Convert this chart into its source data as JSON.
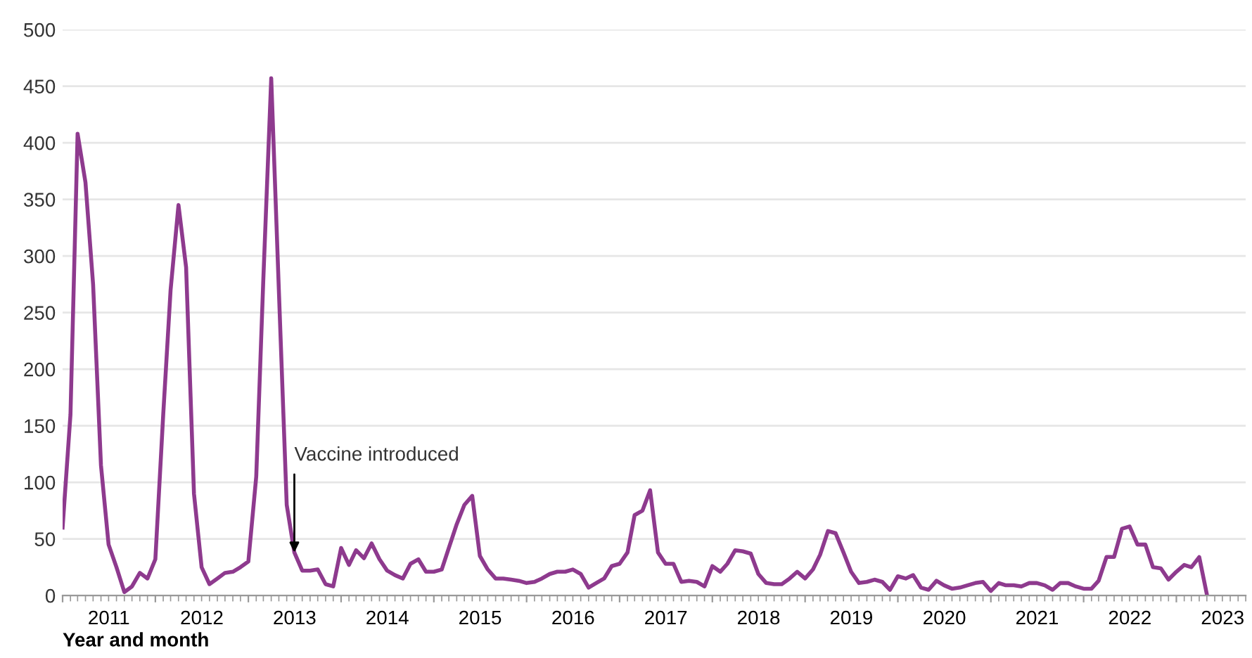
{
  "chart_data": {
    "type": "line",
    "xlabel": "Year and month",
    "x": [
      "2011-01",
      "2011-02",
      "2011-03",
      "2011-04",
      "2011-05",
      "2011-06",
      "2011-07",
      "2011-08",
      "2011-09",
      "2011-10",
      "2011-11",
      "2011-12",
      "2012-01",
      "2012-02",
      "2012-03",
      "2012-04",
      "2012-05",
      "2012-06",
      "2012-07",
      "2012-08",
      "2012-09",
      "2012-10",
      "2012-11",
      "2012-12",
      "2013-01",
      "2013-02",
      "2013-03",
      "2013-04",
      "2013-05",
      "2013-06",
      "2013-07",
      "2013-08",
      "2013-09",
      "2013-10",
      "2013-11",
      "2013-12",
      "2014-01",
      "2014-02",
      "2014-03",
      "2014-04",
      "2014-05",
      "2014-06",
      "2014-07",
      "2014-08",
      "2014-09",
      "2014-10",
      "2014-11",
      "2014-12",
      "2015-01",
      "2015-02",
      "2015-03",
      "2015-04",
      "2015-05",
      "2015-06",
      "2015-07",
      "2015-08",
      "2015-09",
      "2015-10",
      "2015-11",
      "2015-12",
      "2016-01",
      "2016-02",
      "2016-03",
      "2016-04",
      "2016-05",
      "2016-06",
      "2016-07",
      "2016-08",
      "2016-09",
      "2016-10",
      "2016-11",
      "2016-12",
      "2017-01",
      "2017-02",
      "2017-03",
      "2017-04",
      "2017-05",
      "2017-06",
      "2017-07",
      "2017-08",
      "2017-09",
      "2017-10",
      "2017-11",
      "2017-12",
      "2018-01",
      "2018-02",
      "2018-03",
      "2018-04",
      "2018-05",
      "2018-06",
      "2018-07",
      "2018-08",
      "2018-09",
      "2018-10",
      "2018-11",
      "2018-12",
      "2019-01",
      "2019-02",
      "2019-03",
      "2019-04",
      "2019-05",
      "2019-06",
      "2019-07",
      "2019-08",
      "2019-09",
      "2019-10",
      "2019-11",
      "2019-12",
      "2020-01",
      "2020-02",
      "2020-03",
      "2020-04",
      "2020-05",
      "2020-06",
      "2020-07",
      "2020-08",
      "2020-09",
      "2020-10",
      "2020-11",
      "2020-12",
      "2021-01",
      "2021-02",
      "2021-03",
      "2021-04",
      "2021-05",
      "2021-06",
      "2021-07",
      "2021-08",
      "2021-09",
      "2021-10",
      "2021-11",
      "2021-12",
      "2022-01",
      "2022-02",
      "2022-03",
      "2022-04",
      "2022-05",
      "2022-06",
      "2022-07",
      "2022-08",
      "2022-09",
      "2022-10",
      "2022-11",
      "2022-12",
      "2023-01",
      "2023-02",
      "2023-03",
      "2023-04",
      "2023-05"
    ],
    "series": [
      {
        "color": "#8e3a8e",
        "values": [
          60,
          160,
          408,
          365,
          275,
          115,
          45,
          25,
          3,
          8,
          20,
          15,
          32,
          160,
          270,
          345,
          290,
          90,
          25,
          10,
          15,
          20,
          21,
          25,
          30,
          105,
          280,
          457,
          270,
          80,
          38,
          22,
          22,
          23,
          10,
          8,
          42,
          27,
          40,
          33,
          46,
          32,
          22,
          18,
          15,
          28,
          32,
          21,
          21,
          23,
          42,
          63,
          80,
          88,
          35,
          23,
          15,
          15,
          14,
          13,
          11,
          12,
          15,
          19,
          21,
          21,
          23,
          19,
          7,
          11,
          15,
          26,
          28,
          38,
          71,
          75,
          93,
          38,
          28,
          28,
          12,
          13,
          12,
          8,
          26,
          21,
          28,
          40,
          39,
          37,
          19,
          11,
          10,
          10,
          15,
          21,
          15,
          23,
          36,
          57,
          55,
          38,
          21,
          11,
          12,
          14,
          12,
          5,
          17,
          15,
          18,
          7,
          5,
          13,
          9,
          6,
          7,
          9,
          11,
          12,
          4,
          11,
          9,
          9,
          8,
          11,
          11,
          9,
          5,
          11,
          11,
          8,
          6,
          6,
          13,
          34,
          34,
          59,
          61,
          45,
          45,
          25,
          24,
          14,
          21,
          27,
          25,
          34,
          1
        ]
      }
    ],
    "xlim": [
      "2011-01-01",
      "2023-10-01"
    ],
    "xticks": [
      {
        "value": "2011-01-01",
        "label": null
      },
      {
        "value": "2011-07-02",
        "label": "2011"
      },
      {
        "value": "2012-01-01",
        "label": null
      },
      {
        "value": "2012-07-02",
        "label": "2012"
      },
      {
        "value": "2013-01-01",
        "label": null
      },
      {
        "value": "2013-07-02",
        "label": "2013"
      },
      {
        "value": "2014-01-01",
        "label": null
      },
      {
        "value": "2014-07-02",
        "label": "2014"
      },
      {
        "value": "2015-01-01",
        "label": null
      },
      {
        "value": "2015-07-02",
        "label": "2015"
      },
      {
        "value": "2016-01-01",
        "label": null
      },
      {
        "value": "2016-07-02",
        "label": "2016"
      },
      {
        "value": "2017-01-01",
        "label": null
      },
      {
        "value": "2017-07-02",
        "label": "2017"
      },
      {
        "value": "2018-01-01",
        "label": null
      },
      {
        "value": "2018-07-02",
        "label": "2018"
      },
      {
        "value": "2019-01-01",
        "label": null
      },
      {
        "value": "2019-07-02",
        "label": "2019"
      },
      {
        "value": "2020-01-01",
        "label": null
      },
      {
        "value": "2020-07-02",
        "label": "2020"
      },
      {
        "value": "2021-01-01",
        "label": null
      },
      {
        "value": "2021-07-02",
        "label": "2021"
      },
      {
        "value": "2022-01-01",
        "label": null
      },
      {
        "value": "2022-07-02",
        "label": "2022"
      },
      {
        "value": "2023-01-01",
        "label": null
      },
      {
        "value": "2023-07-02",
        "label": "2023"
      }
    ],
    "ylim": [
      0,
      500
    ],
    "yticks": [
      0,
      50,
      100,
      150,
      200,
      250,
      300,
      350,
      400,
      450,
      500
    ],
    "grid": "y",
    "marker": "none",
    "line_style": "solid",
    "annotations": [
      {
        "text": "Vaccine introduced",
        "x": "2013-07",
        "y": 38
      }
    ]
  }
}
